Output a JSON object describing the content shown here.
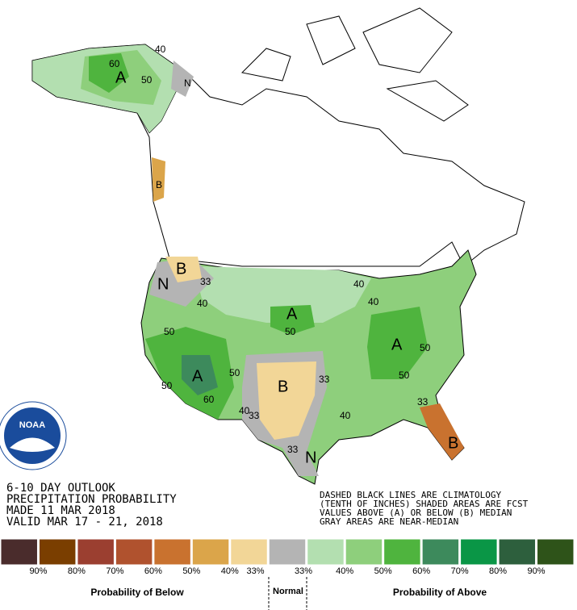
{
  "header": {
    "lines": [
      "6-10 DAY OUTLOOK",
      "PRECIPITATION PROBABILITY",
      "MADE  11 MAR 2018",
      "VALID  MAR 17 - 21, 2018"
    ]
  },
  "notes": [
    "DASHED BLACK LINES ARE CLIMATOLOGY",
    "(TENTH OF INCHES) SHADED AREAS ARE FCST",
    "VALUES ABOVE (A) OR BELOW (B) MEDIAN",
    "GRAY AREAS ARE NEAR-MEDIAN"
  ],
  "legend": {
    "colors": [
      "#4a2c2c",
      "#7a3e00",
      "#9b3f30",
      "#b0522e",
      "#c9722f",
      "#dba54a",
      "#f2d697",
      "#b4b4b4",
      "#b3dfb0",
      "#8ecf7c",
      "#4fb43e",
      "#3d8a5c",
      "#0a9646",
      "#2d5f3d",
      "#2e5319"
    ],
    "labels": [
      "90%",
      "80%",
      "70%",
      "60%",
      "50%",
      "40%",
      "33%",
      "33%",
      "40%",
      "50%",
      "60%",
      "70%",
      "80%",
      "90%"
    ],
    "below": "Probability of Below",
    "normal": "Normal",
    "above": "Probability of Above"
  },
  "map_labels": [
    "A",
    "60",
    "40",
    "50",
    "N",
    "B",
    "B",
    "N",
    "33",
    "40",
    "50",
    "A",
    "40",
    "50",
    "A",
    "50",
    "A",
    "60",
    "50",
    "B",
    "40",
    "33",
    "33",
    "40",
    "50",
    "33",
    "B",
    "33",
    "N",
    "40",
    "50"
  ]
}
